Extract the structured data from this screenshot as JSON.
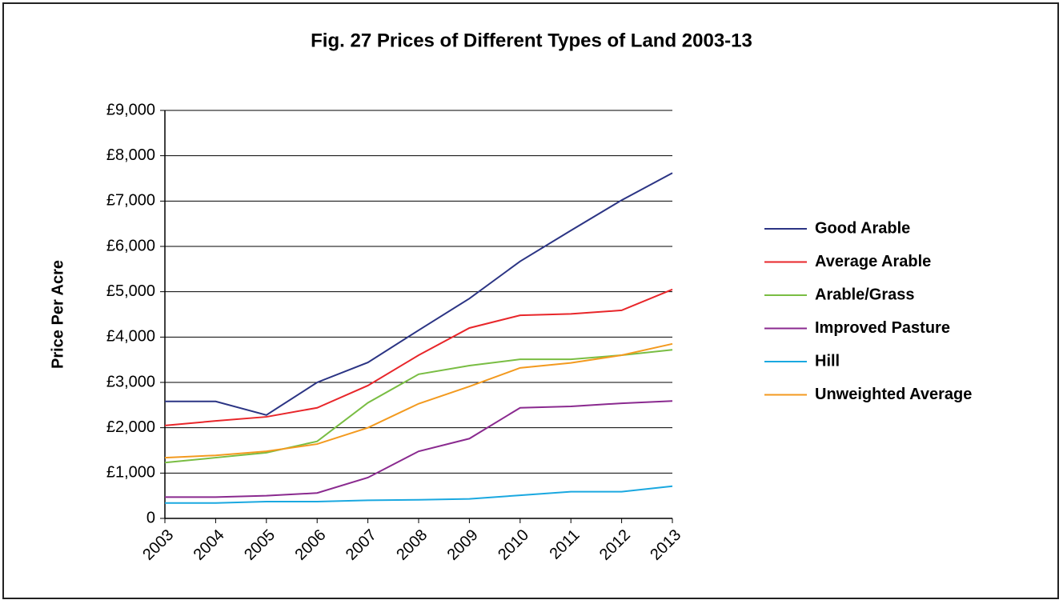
{
  "chart_data": {
    "type": "line",
    "title": "Fig. 27  Prices of Different Types of Land 2003-13",
    "y_label": "Price Per Acre",
    "categories": [
      "2003",
      "2004",
      "2005",
      "2006",
      "2007",
      "2008",
      "2009",
      "2010",
      "2011",
      "2012",
      "2013"
    ],
    "series": [
      {
        "name": "Good Arable",
        "color": "#2b3484",
        "values": [
          2580,
          2580,
          2280,
          3000,
          3440,
          4150,
          4850,
          5670,
          6350,
          7020,
          7620
        ]
      },
      {
        "name": "Average Arable",
        "color": "#e8262a",
        "values": [
          2050,
          2150,
          2240,
          2440,
          2930,
          3600,
          4200,
          4480,
          4510,
          4590,
          5050
        ]
      },
      {
        "name": "Arable/Grass",
        "color": "#79bd43",
        "values": [
          1230,
          1340,
          1450,
          1700,
          2550,
          3180,
          3370,
          3510,
          3510,
          3600,
          3720
        ]
      },
      {
        "name": "Improved Pasture",
        "color": "#8a2a8f",
        "values": [
          470,
          470,
          500,
          560,
          900,
          1480,
          1760,
          2440,
          2470,
          2540,
          2590
        ]
      },
      {
        "name": "Hill",
        "color": "#1aa8e0",
        "values": [
          340,
          340,
          370,
          370,
          400,
          410,
          430,
          510,
          590,
          590,
          710
        ]
      },
      {
        "name": "Unweighted Average",
        "color": "#f39a1f",
        "values": [
          1340,
          1390,
          1480,
          1640,
          2000,
          2530,
          2910,
          3320,
          3430,
          3600,
          3850
        ]
      }
    ],
    "ylim": [
      0,
      9000
    ],
    "yticks": [
      0,
      {
        "value": 1000,
        "label": "£1,000"
      },
      {
        "value": 2000,
        "label": "£2,000"
      },
      {
        "value": 3000,
        "label": "£3,000"
      },
      {
        "value": 4000,
        "label": "£4,000"
      },
      {
        "value": 5000,
        "label": "£5,000"
      },
      {
        "value": 6000,
        "label": "£6,000"
      },
      {
        "value": 7000,
        "label": "£7,000"
      },
      {
        "value": 8000,
        "label": "£8,000"
      },
      {
        "value": 9000,
        "label": "£9,000"
      }
    ],
    "grid": true,
    "legend": "right"
  }
}
